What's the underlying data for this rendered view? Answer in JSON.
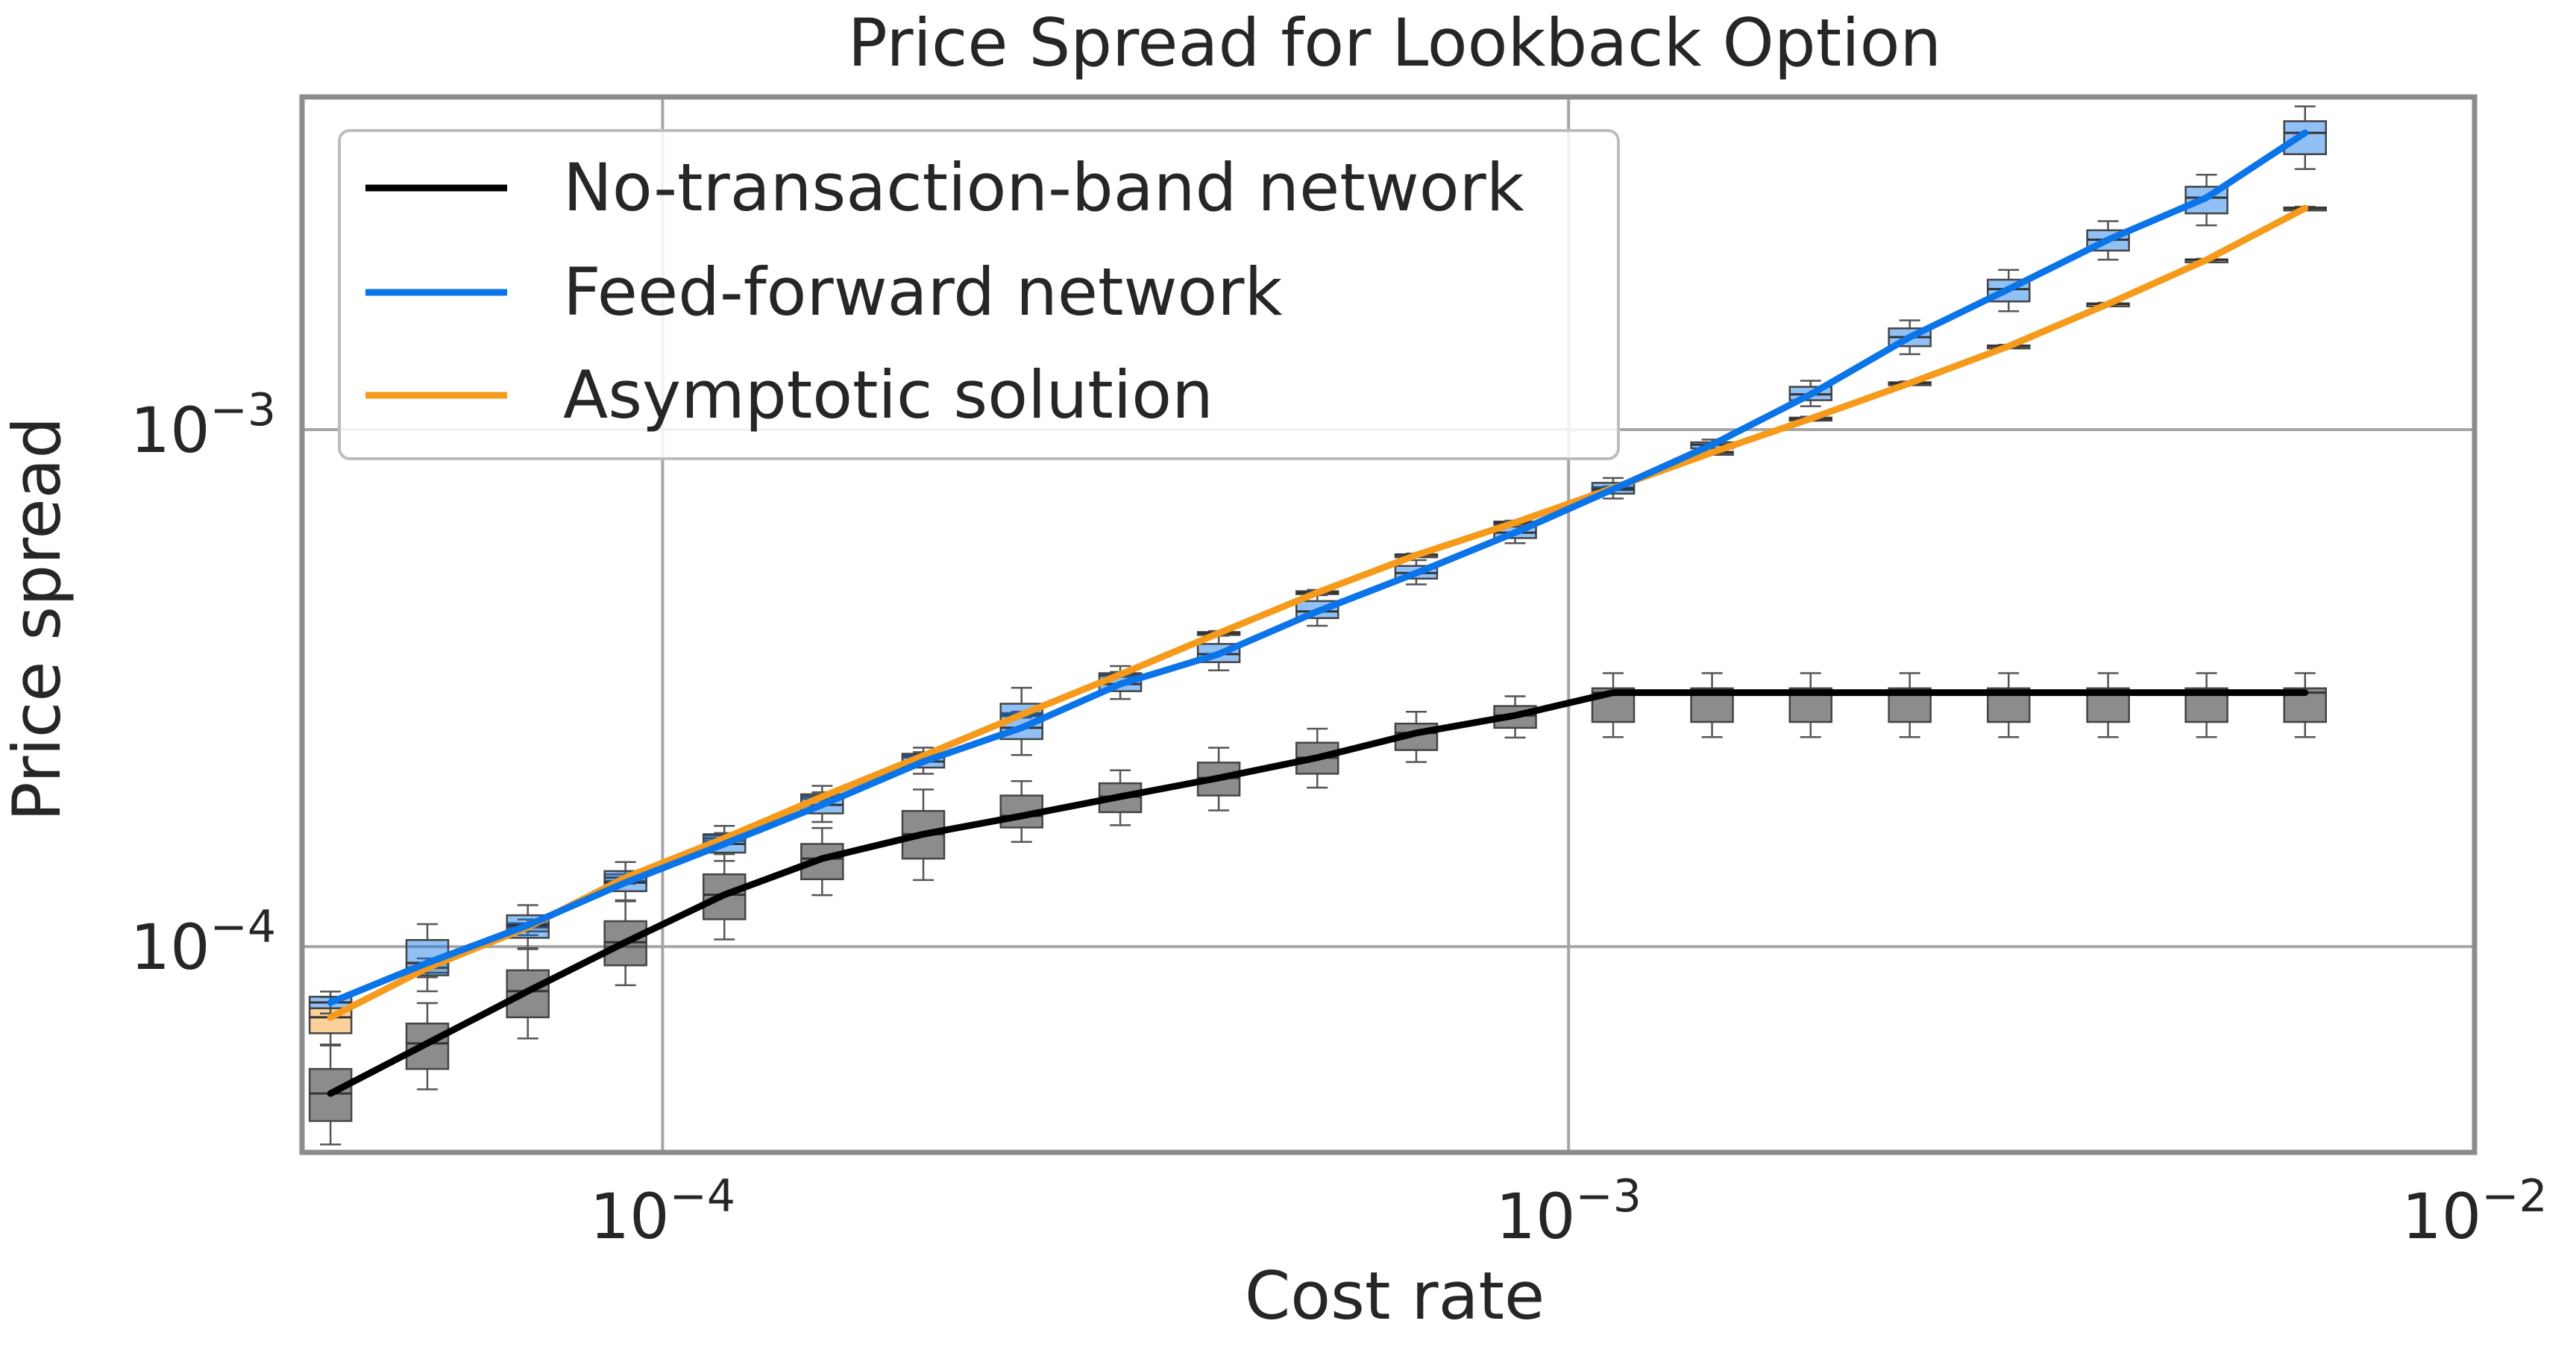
{
  "chart_data": {
    "type": "line",
    "title": "Price Spread for Lookback Option",
    "xlabel": "Cost rate",
    "ylabel": "Price spread",
    "xscale": "log",
    "yscale": "log",
    "xlim": [
      4e-05,
      0.01
    ],
    "ylim": [
      4e-05,
      0.0044
    ],
    "grid": true,
    "legend_position": "top-left",
    "x_ticks": [
      {
        "value": 0.0001,
        "base": "10",
        "exp": "−4"
      },
      {
        "value": 0.001,
        "base": "10",
        "exp": "−3"
      },
      {
        "value": 0.01,
        "base": "10",
        "exp": "−2"
      }
    ],
    "y_ticks": [
      {
        "value": 0.0001,
        "base": "10",
        "exp": "−4"
      },
      {
        "value": 0.001,
        "base": "10",
        "exp": "−3"
      }
    ],
    "x": [
      4.3e-05,
      5.5e-05,
      7.1e-05,
      9.1e-05,
      0.000117,
      0.00015,
      0.000194,
      0.000249,
      0.00032,
      0.000411,
      0.000528,
      0.000679,
      0.000873,
      0.00112,
      0.00144,
      0.00185,
      0.00238,
      0.00306,
      0.00394,
      0.00506,
      0.0065
    ],
    "series": [
      {
        "name": "No-transaction-band network",
        "color": "#000000",
        "values": [
          5.2e-05,
          6.5e-05,
          8.2e-05,
          0.000102,
          0.000126,
          0.000148,
          0.000165,
          0.000179,
          0.000195,
          0.000212,
          0.000232,
          0.000259,
          0.00028,
          0.00031,
          0.00031,
          0.00031,
          0.00031,
          0.00031,
          0.00031,
          0.00031,
          0.00031
        ],
        "box_lower": [
          4.6e-05,
          5.8e-05,
          7.3e-05,
          9.2e-05,
          0.000113,
          0.000135,
          0.000148,
          0.00017,
          0.000182,
          0.000196,
          0.000216,
          0.00024,
          0.000265,
          0.000272,
          0.000272,
          0.000272,
          0.000272,
          0.000272,
          0.000272,
          0.000272,
          0.000272
        ],
        "box_upper": [
          5.8e-05,
          7.1e-05,
          9e-05,
          0.000112,
          0.000138,
          0.000158,
          0.000183,
          0.000196,
          0.000207,
          0.000227,
          0.000248,
          0.00027,
          0.000292,
          0.000316,
          0.000316,
          0.000316,
          0.000316,
          0.000316,
          0.000316,
          0.000316,
          0.000316
        ]
      },
      {
        "name": "Feed-forward network",
        "color": "#0a74e8",
        "values": [
          7.8e-05,
          9.3e-05,
          0.00011,
          0.000133,
          0.000158,
          0.000188,
          0.000228,
          0.000265,
          0.000322,
          0.000368,
          0.000445,
          0.000528,
          0.000632,
          0.000767,
          0.000935,
          0.00117,
          0.00151,
          0.00187,
          0.00233,
          0.00281,
          0.00375
        ],
        "box_lower": [
          7.6e-05,
          8.8e-05,
          0.000104,
          0.000128,
          0.000152,
          0.000181,
          0.000222,
          0.000252,
          0.000312,
          0.000355,
          0.000432,
          0.000515,
          0.000617,
          0.000752,
          0.00092,
          0.00114,
          0.00145,
          0.00177,
          0.00222,
          0.00262,
          0.00341
        ],
        "box_upper": [
          8e-05,
          0.000103,
          0.000115,
          0.00014,
          0.000165,
          0.000197,
          0.000236,
          0.000295,
          0.000337,
          0.000385,
          0.000466,
          0.000545,
          0.000649,
          0.000789,
          0.000945,
          0.00121,
          0.00157,
          0.00195,
          0.00243,
          0.00295,
          0.00395
        ]
      },
      {
        "name": "Asymptotic solution",
        "color": "#f59a1a",
        "values": [
          7.3e-05,
          9.1e-05,
          0.000109,
          0.000136,
          0.000162,
          0.000195,
          0.000234,
          0.000281,
          0.000336,
          0.000404,
          0.000484,
          0.000572,
          0.000661,
          0.000771,
          0.000903,
          0.00105,
          0.00123,
          0.00145,
          0.00175,
          0.00213,
          0.00268
        ],
        "box_lower": [
          6.8e-05,
          8.9e-05,
          0.000107,
          0.000134,
          0.00016,
          0.000193,
          0.000232,
          0.000279,
          0.000334,
          0.000402,
          0.000481,
          0.00057,
          0.000658,
          0.000768,
          0.0009,
          0.001045,
          0.001225,
          0.001445,
          0.001745,
          0.002125,
          0.00267
        ],
        "box_upper": [
          7.6e-05,
          9.3e-05,
          0.000111,
          0.000138,
          0.000164,
          0.000197,
          0.000236,
          0.000283,
          0.000338,
          0.000406,
          0.000487,
          0.000574,
          0.000664,
          0.000774,
          0.000906,
          0.001055,
          0.001235,
          0.001455,
          0.001755,
          0.002135,
          0.00269
        ]
      }
    ]
  }
}
